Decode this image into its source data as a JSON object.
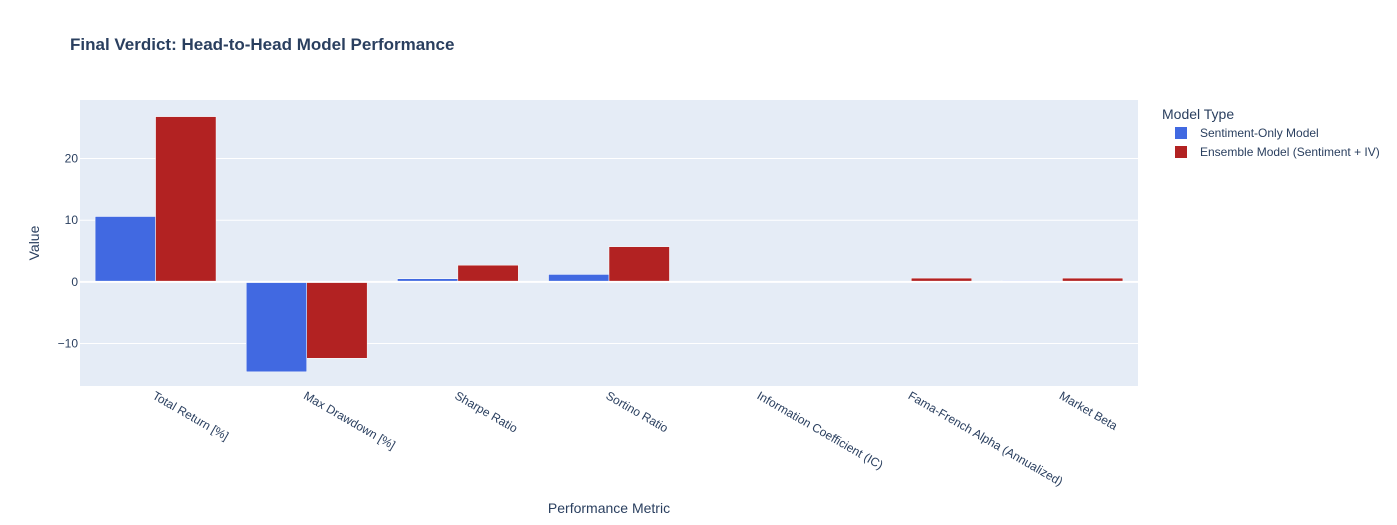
{
  "chart_data": {
    "type": "bar",
    "title": "Final Verdict: Head-to-Head Model Performance",
    "xlabel": "Performance Metric",
    "ylabel": "Value",
    "categories": [
      "Total Return [%]",
      "Max Drawdown [%]",
      "Sharpe Ratio",
      "Sortino Ratio",
      "Information Coefficient (IC)",
      "Fama-French Alpha (Annualized)",
      "Market Beta"
    ],
    "series": [
      {
        "name": "Sentiment-Only Model",
        "color": "#4169e1",
        "values": [
          10.6,
          -14.6,
          0.5,
          1.2,
          0.01,
          0.03,
          0.2
        ]
      },
      {
        "name": "Ensemble Model (Sentiment + IV)",
        "color": "#b22222",
        "values": [
          26.8,
          -12.4,
          2.7,
          5.7,
          0.03,
          0.6,
          0.6
        ]
      }
    ],
    "ylim": [
      -16.9,
      29.5
    ],
    "yticks": [
      -10,
      0,
      10,
      20
    ],
    "ytick_labels": [
      "−10",
      "0",
      "10",
      "20"
    ],
    "grid": true,
    "legend": {
      "title": "Model Type",
      "position": "top-right"
    },
    "plot_bg": "#e5ecf6"
  }
}
